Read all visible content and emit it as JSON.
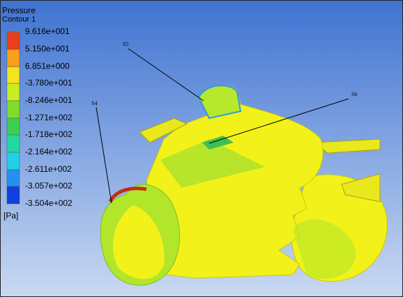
{
  "legend": {
    "title": "Pressure",
    "subtitle": "Contour 1",
    "levels": [
      "9.616e+001",
      "5.150e+001",
      "6.851e+000",
      "-3.780e+001",
      "-8.246e+001",
      "-1.271e+002",
      "-1.718e+002",
      "-2.164e+002",
      "-2.611e+002",
      "-3.057e+002",
      "-3.504e+002"
    ],
    "unit": "[Pa]"
  },
  "annotations": [
    "S5",
    "S6",
    "S4"
  ]
}
